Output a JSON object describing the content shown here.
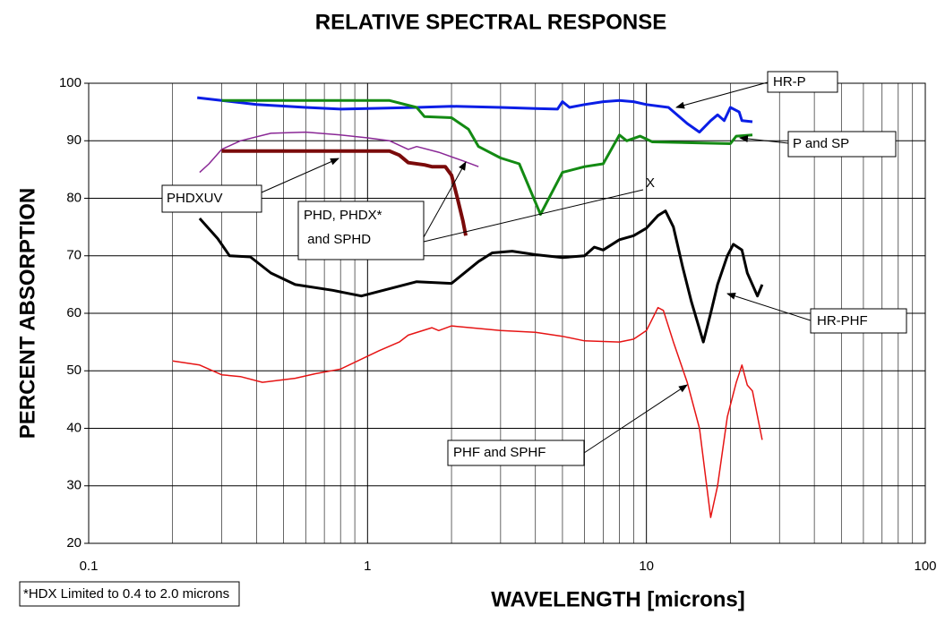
{
  "chart_data": {
    "type": "line",
    "title": "RELATIVE SPECTRAL RESPONSE",
    "x_label": "WAVELENGTH [microns]",
    "y_label": "PERCENT ABSORPTION",
    "x_log": true,
    "grid": true,
    "xlim": [
      0.1,
      100
    ],
    "ylim": [
      20,
      100
    ],
    "xticks": [
      0.1,
      1,
      10,
      100
    ],
    "x_minor_ticks": [
      0.2,
      0.3,
      0.4,
      0.5,
      0.6,
      0.7,
      0.8,
      0.9,
      2,
      3,
      4,
      5,
      6,
      7,
      8,
      9,
      20,
      30,
      40,
      50,
      60,
      70,
      80,
      90
    ],
    "yticks": [
      20,
      30,
      40,
      50,
      60,
      70,
      80,
      90,
      100
    ],
    "series": [
      {
        "name": "HR-P",
        "color": "#0a1ee6",
        "width": 3,
        "x": [
          0.245,
          0.3,
          0.4,
          0.6,
          0.8,
          1,
          1.5,
          2,
          3,
          4,
          4.8,
          5,
          5.3,
          6,
          7,
          8,
          9,
          10,
          12,
          14,
          15.5,
          17,
          18,
          19,
          20,
          21.5,
          22,
          24
        ],
        "values": [
          97.5,
          97,
          96.3,
          95.8,
          95.5,
          95.6,
          95.8,
          96,
          95.8,
          95.6,
          95.5,
          96.8,
          95.8,
          96.3,
          96.8,
          97,
          96.8,
          96.3,
          95.8,
          93,
          91.5,
          93.5,
          94.5,
          93.5,
          95.8,
          95,
          93.5,
          93.3
        ]
      },
      {
        "name": "P and SP",
        "color": "#138a13",
        "width": 3,
        "x": [
          0.3,
          1.2,
          1.5,
          1.6,
          2,
          2.3,
          2.5,
          3,
          3.5,
          4.17,
          5,
          6,
          7,
          8,
          8.5,
          9.5,
          10.5,
          20,
          21,
          24
        ],
        "values": [
          97,
          97,
          95.8,
          94.2,
          94,
          92,
          89,
          87,
          86,
          77.2,
          84.5,
          85.5,
          86,
          91,
          90,
          90.8,
          89.8,
          89.5,
          90.8,
          91
        ]
      },
      {
        "name": "PHDXUV",
        "color": "#8a2896",
        "width": 1.5,
        "x": [
          0.25,
          0.27,
          0.3,
          0.35,
          0.45,
          0.6,
          0.8,
          1,
          1.2,
          1.4,
          1.5,
          1.8,
          2.2,
          2.5
        ],
        "values": [
          84.5,
          86,
          88.5,
          90,
          91.3,
          91.5,
          91,
          90.5,
          90,
          88.5,
          89,
          88,
          86.5,
          85.5
        ]
      },
      {
        "name": "PHD, PHDX* and SPHD",
        "color": "#7a0a0a",
        "width": 4,
        "x": [
          0.3,
          1.2,
          1.3,
          1.4,
          1.6,
          1.7,
          1.9,
          2.0,
          2.1,
          2.2,
          2.25
        ],
        "values": [
          88.2,
          88.2,
          87.5,
          86.2,
          85.8,
          85.5,
          85.5,
          84,
          80,
          76,
          73.5
        ]
      },
      {
        "name": "HR-PHF",
        "color": "#000000",
        "width": 3,
        "x": [
          0.25,
          0.29,
          0.32,
          0.38,
          0.45,
          0.55,
          0.75,
          0.95,
          1.5,
          2,
          2.5,
          2.8,
          3.3,
          4,
          5,
          6,
          6.5,
          7,
          8,
          9,
          10,
          11,
          11.7,
          12.5,
          13.5,
          14.5,
          16,
          17,
          18,
          19.5,
          20.5,
          22,
          23,
          25,
          26
        ],
        "values": [
          76.5,
          73,
          70,
          69.8,
          67,
          65,
          64,
          63,
          65.5,
          65.2,
          69,
          70.5,
          70.8,
          70.2,
          69.7,
          70,
          71.5,
          71,
          72.8,
          73.5,
          74.8,
          77,
          77.8,
          75,
          68,
          62,
          55,
          60,
          65,
          70,
          72,
          71,
          67,
          63,
          65
        ]
      },
      {
        "name": "PHF and SPHF",
        "color": "#e61414",
        "width": 1.5,
        "x": [
          0.2,
          0.25,
          0.3,
          0.35,
          0.42,
          0.55,
          0.65,
          0.8,
          1.1,
          1.3,
          1.4,
          1.7,
          1.8,
          2,
          3,
          4,
          5,
          6,
          8,
          9,
          10,
          11,
          11.5,
          12.5,
          14,
          15.5,
          17,
          18,
          19.5,
          21,
          22,
          23,
          24,
          26
        ],
        "values": [
          51.7,
          51,
          49.3,
          49,
          48,
          48.7,
          49.5,
          50.3,
          53.5,
          55,
          56.2,
          57.5,
          57,
          57.8,
          57,
          56.7,
          56,
          55.2,
          55,
          55.5,
          57,
          61,
          60.5,
          55,
          48,
          40,
          24.5,
          30,
          42,
          48,
          51,
          47.5,
          46.5,
          38
        ]
      }
    ],
    "annotations": {
      "hrp": "HR-P",
      "psp": "P and SP",
      "phdxuv": "PHDXUV",
      "phd": [
        "PHD, PHDX*",
        " and SPHD"
      ],
      "x": "X",
      "hrphf": "HR-PHF",
      "phf": "PHF and SPHF",
      "note": "*HDX Limited to 0.4 to 2.0 microns"
    }
  }
}
